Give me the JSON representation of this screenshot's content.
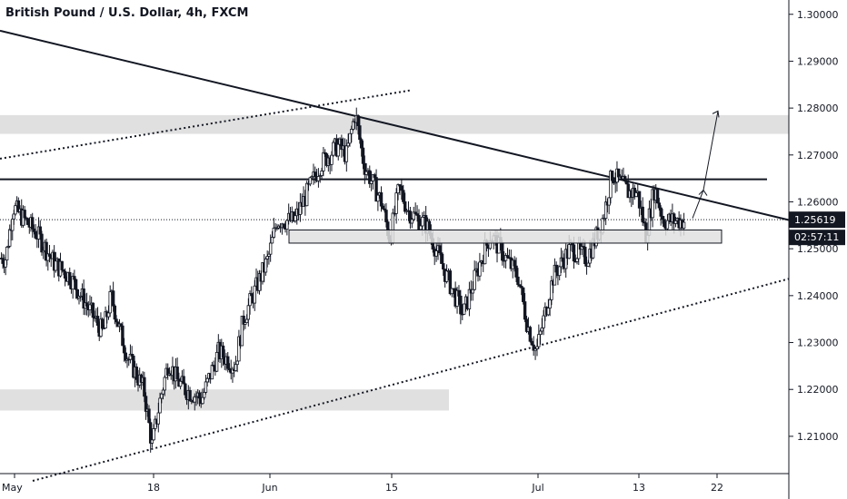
{
  "chart_data": {
    "type": "candlestick",
    "title": "British Pound / U.S. Dollar, 4h, FXCM",
    "symbol": "GBPUSD",
    "interval": "4h",
    "source": "FXCM",
    "ylim": [
      1.2005,
      1.3015
    ],
    "y_ticks": [
      "1.30000",
      "1.29000",
      "1.28000",
      "1.27000",
      "1.26000",
      "1.25000",
      "1.24000",
      "1.23000",
      "1.22000",
      "1.21000"
    ],
    "y_tick_values": [
      1.3,
      1.29,
      1.28,
      1.27,
      1.26,
      1.25,
      1.24,
      1.23,
      1.22,
      1.21
    ],
    "x_ticks": [
      "May",
      "18",
      "Jun",
      "15",
      "Jul",
      "13",
      "22"
    ],
    "last_price": "1.25619",
    "last_price_value": 1.25619,
    "countdown": "02:57:11",
    "grid": false,
    "colors": {
      "candle": "#131722",
      "zone": "#e0e0e0",
      "tag": "#131722",
      "background": "#ffffff"
    },
    "price_path": [
      [
        "Apr 30",
        1.248
      ],
      [
        "May 1",
        1.259
      ],
      [
        "May 4",
        1.253
      ],
      [
        "May 6",
        1.247
      ],
      [
        "May 8",
        1.244
      ],
      [
        "May 11",
        1.235
      ],
      [
        "May 12",
        1.232
      ],
      [
        "May 13",
        1.24
      ],
      [
        "May 14",
        1.233
      ],
      [
        "May 15",
        1.227
      ],
      [
        "May 17",
        1.22
      ],
      [
        "May 18",
        1.208
      ],
      [
        "May 19",
        1.218
      ],
      [
        "May 20",
        1.226
      ],
      [
        "May 21",
        1.222
      ],
      [
        "May 22",
        1.22
      ],
      [
        "May 24",
        1.218
      ],
      [
        "May 26",
        1.228
      ],
      [
        "May 28",
        1.225
      ],
      [
        "May 29",
        1.235
      ],
      [
        "Jun 1",
        1.248
      ],
      [
        "Jun 2",
        1.256
      ],
      [
        "Jun 4",
        1.256
      ],
      [
        "Jun 5",
        1.26
      ],
      [
        "Jun 7",
        1.268
      ],
      [
        "Jun 9",
        1.272
      ],
      [
        "Jun 10",
        1.27
      ],
      [
        "Jun 11",
        1.279
      ],
      [
        "Jun 12",
        1.268
      ],
      [
        "Jun 14",
        1.26
      ],
      [
        "Jun 15",
        1.252
      ],
      [
        "Jun 16",
        1.263
      ],
      [
        "Jun 17",
        1.258
      ],
      [
        "Jun 19",
        1.255
      ],
      [
        "Jun 21",
        1.245
      ],
      [
        "Jun 23",
        1.236
      ],
      [
        "Jun 25",
        1.248
      ],
      [
        "Jun 26",
        1.253
      ],
      [
        "Jun 27",
        1.25
      ],
      [
        "Jun 29",
        1.244
      ],
      [
        "Jun 30",
        1.234
      ],
      [
        "Jul 1",
        1.228
      ],
      [
        "Jul 3",
        1.244
      ],
      [
        "Jul 5",
        1.25
      ],
      [
        "Jul 7",
        1.248
      ],
      [
        "Jul 8",
        1.252
      ],
      [
        "Jul 9",
        1.257
      ],
      [
        "Jul 10",
        1.266
      ],
      [
        "Jul 12",
        1.262
      ],
      [
        "Jul 13",
        1.262
      ],
      [
        "Jul 14",
        1.253
      ],
      [
        "Jul 15",
        1.263
      ],
      [
        "Jul 16",
        1.256
      ],
      [
        "Jul 17",
        1.256
      ]
    ],
    "annotations": {
      "horizontal_line": 1.2648,
      "resistance_zone": [
        1.2745,
        1.2785
      ],
      "demand_zone": [
        1.2155,
        1.22
      ],
      "support_zone": [
        1.2512,
        1.254
      ],
      "descending_trendline": [
        [
          "Apr 30",
          1.2965
        ],
        [
          "Jul 22",
          1.2598
        ]
      ],
      "ascending_dotted_lower": [
        [
          "May 4",
          1.2005
        ],
        [
          "Jul 22",
          1.2395
        ]
      ],
      "ascending_dotted_upper": [
        [
          "Apr 30",
          1.2692
        ],
        [
          "Jun 15",
          1.2835
        ]
      ],
      "projection_arrows": [
        [
          "Jul 18",
          1.2565
        ],
        [
          "Jul 19",
          1.2625
        ],
        [
          "Jul 20",
          1.2755
        ]
      ]
    }
  }
}
